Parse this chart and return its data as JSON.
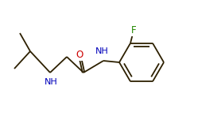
{
  "bg_color": "#ffffff",
  "bond_color": "#2d2000",
  "atom_colors": {
    "O": "#cc0000",
    "N": "#0000bb",
    "F": "#228800",
    "C": "#2d2000"
  },
  "lw": 1.3,
  "font_size": 8.5
}
